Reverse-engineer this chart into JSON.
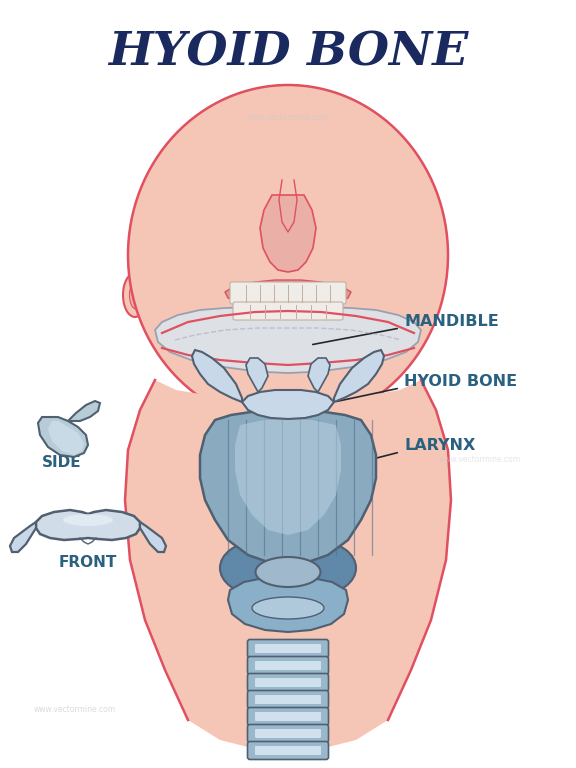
{
  "title": "HYOID BONE",
  "title_color": "#1a2a5e",
  "title_fontsize": 34,
  "bg_color": "#ffffff",
  "labels": {
    "mandible": "MANDIBLE",
    "hyoid_bone": "HYOID BONE",
    "larynx": "LARYNX",
    "side": "SIDE",
    "front": "FRONT"
  },
  "label_color": "#2a6080",
  "label_fontsize": 11.5,
  "skin_fill": "#f5c5b5",
  "skin_outline": "#e05060",
  "jaw_fill": "#dde0e5",
  "jaw_outline": "#9aa0b0",
  "bone_fill": "#b8ccd8",
  "bone_outline": "#506070",
  "bone_fill_dark": "#7090a8",
  "larynx_fill": "#8aaac0",
  "larynx_dark": "#6088a8",
  "trachea_fill": "#9ab8cc",
  "trachea_ring": "#b8ccd8",
  "line_color": "#222830",
  "watermark": "#cccccc"
}
